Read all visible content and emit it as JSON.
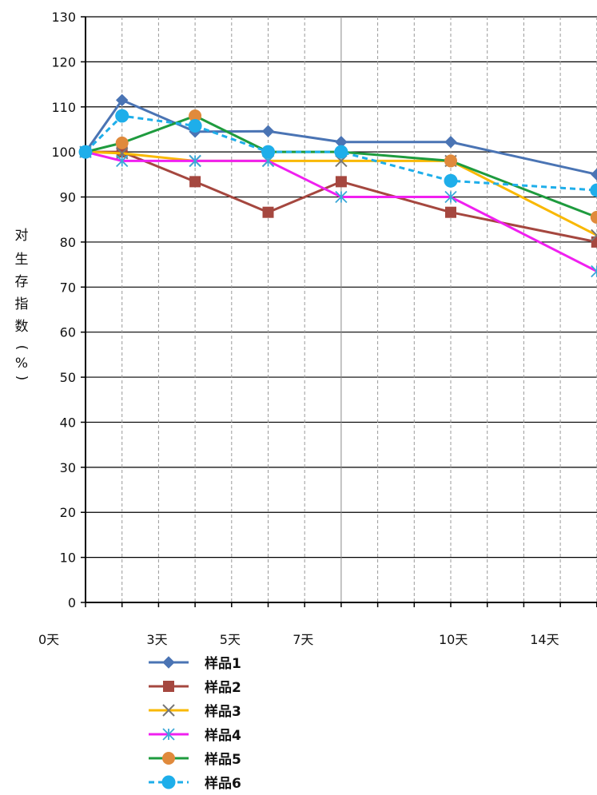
{
  "chart_data": {
    "type": "line",
    "ylabel": "对生存指数(%)",
    "ylabel_chars": [
      "对",
      "生",
      "存",
      "指",
      "数",
      "(",
      "%",
      ")"
    ],
    "ylim": [
      0,
      130
    ],
    "yticks": [
      0,
      10,
      20,
      30,
      40,
      50,
      60,
      70,
      80,
      90,
      100,
      110,
      120,
      130
    ],
    "xlim": [
      0,
      14
    ],
    "x_tick_labels": [
      {
        "x": 0,
        "label": "0天"
      },
      {
        "x": 2,
        "label": "3天"
      },
      {
        "x": 4,
        "label": "5天"
      },
      {
        "x": 6,
        "label": "7天"
      },
      {
        "x": 10,
        "label": "10天"
      },
      {
        "x": 12.5,
        "label": "14天"
      }
    ],
    "grid": true,
    "legend_position": "bottom-left",
    "series": [
      {
        "name": "样品1",
        "color": "#4A74B4",
        "marker": "diamond",
        "dash": false,
        "x": [
          0,
          1,
          3,
          5,
          7,
          10,
          14
        ],
        "y": [
          100,
          111.5,
          104.5,
          104.6,
          102.2,
          102.2,
          95
        ]
      },
      {
        "name": "样品2",
        "color": "#A5473F",
        "marker": "square",
        "dash": false,
        "x": [
          0,
          1,
          3,
          5,
          7,
          10,
          14
        ],
        "y": [
          100,
          100,
          93.4,
          86.6,
          93.4,
          86.6,
          80
        ]
      },
      {
        "name": "样品3",
        "color": "#F9B800",
        "marker": "x",
        "dash": false,
        "x": [
          0,
          1,
          3,
          5,
          7,
          10,
          14
        ],
        "y": [
          100,
          99.7,
          98,
          98,
          98,
          98,
          81.5
        ]
      },
      {
        "name": "样品4",
        "color": "#F020F0",
        "marker": "star",
        "dash": false,
        "x": [
          0,
          1,
          3,
          5,
          7,
          10,
          14
        ],
        "y": [
          100,
          98,
          98,
          98,
          90,
          90,
          73.5
        ]
      },
      {
        "name": "样品5",
        "color": "#1E9B3E",
        "marker": "circle-orange",
        "dash": false,
        "x": [
          0,
          1,
          3,
          5,
          7,
          10,
          14
        ],
        "y": [
          100,
          102,
          108,
          100,
          100,
          98,
          85.5
        ]
      },
      {
        "name": "样品6",
        "color": "#1EAEEA",
        "marker": "circle",
        "dash": true,
        "x": [
          0,
          1,
          3,
          5,
          7,
          10,
          14
        ],
        "y": [
          100,
          108,
          105.8,
          100,
          100,
          93.6,
          91.5
        ]
      }
    ],
    "marker_colors": {
      "circle-orange": "#E08A3C"
    }
  }
}
